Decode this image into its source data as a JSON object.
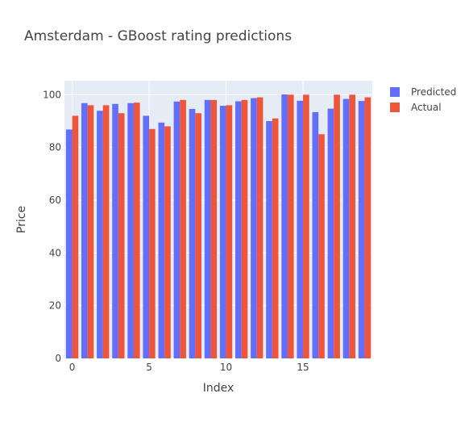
{
  "chart_data": {
    "type": "bar",
    "title": "Amsterdam - GBoost rating predictions",
    "xlabel": "Index",
    "ylabel": "Price",
    "x": [
      0,
      1,
      2,
      3,
      4,
      5,
      6,
      7,
      8,
      9,
      10,
      11,
      12,
      13,
      14,
      15,
      16,
      17,
      18,
      19
    ],
    "x_ticks": [
      0,
      5,
      10,
      15
    ],
    "y_ticks": [
      0,
      20,
      40,
      60,
      80,
      100
    ],
    "xlim": [
      -0.5,
      19.5
    ],
    "ylim": [
      0,
      105.3
    ],
    "grid": true,
    "legend_position": "top-right",
    "series": [
      {
        "name": "Predicted",
        "color": "#636efa",
        "values": [
          86.8,
          96.8,
          93.9,
          96.5,
          96.8,
          92.0,
          89.4,
          97.4,
          94.6,
          98.0,
          95.8,
          97.5,
          98.7,
          90.0,
          100.1,
          97.7,
          93.4,
          94.7,
          98.4,
          97.6
        ]
      },
      {
        "name": "Actual",
        "color": "#ef553b",
        "values": [
          92,
          96,
          96,
          93,
          97,
          87,
          88,
          98,
          93,
          98,
          96,
          98,
          99,
          91,
          100,
          100,
          85,
          100,
          100,
          99
        ]
      }
    ]
  }
}
